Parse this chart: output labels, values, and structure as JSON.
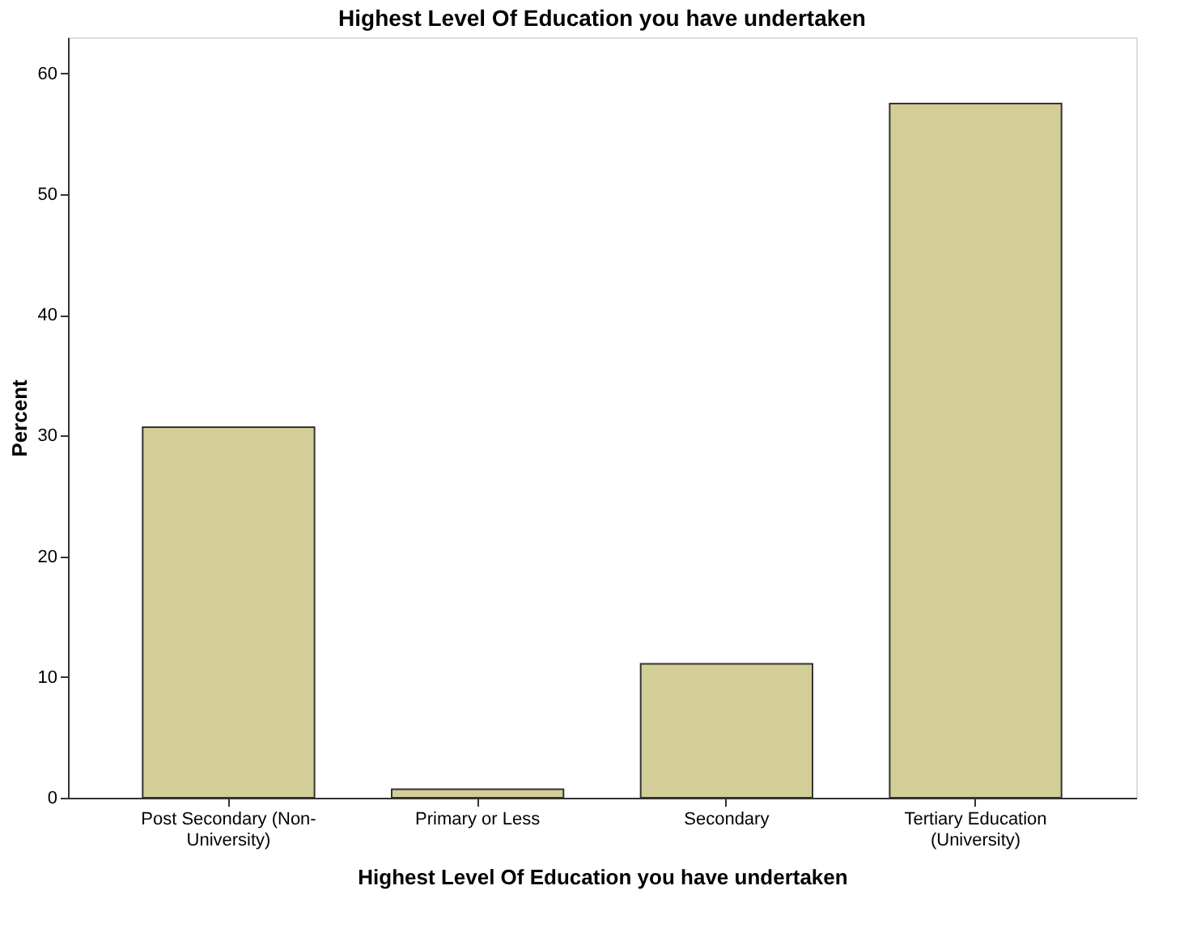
{
  "chart_data": {
    "type": "bar",
    "title": "Highest Level Of Education you have undertaken",
    "xlabel": "Highest Level Of Education you have undertaken",
    "ylabel": "Percent",
    "categories": [
      "Post Secondary (Non-\nUniversity)",
      "Primary or Less",
      "Secondary",
      "Tertiary Education\n(University)"
    ],
    "values": [
      30.7,
      0.7,
      11.1,
      57.5
    ],
    "color": "#d3ce97",
    "ylim": [
      0,
      63
    ],
    "yticks": [
      0,
      10,
      20,
      30,
      40,
      50,
      60
    ],
    "grid": false
  }
}
